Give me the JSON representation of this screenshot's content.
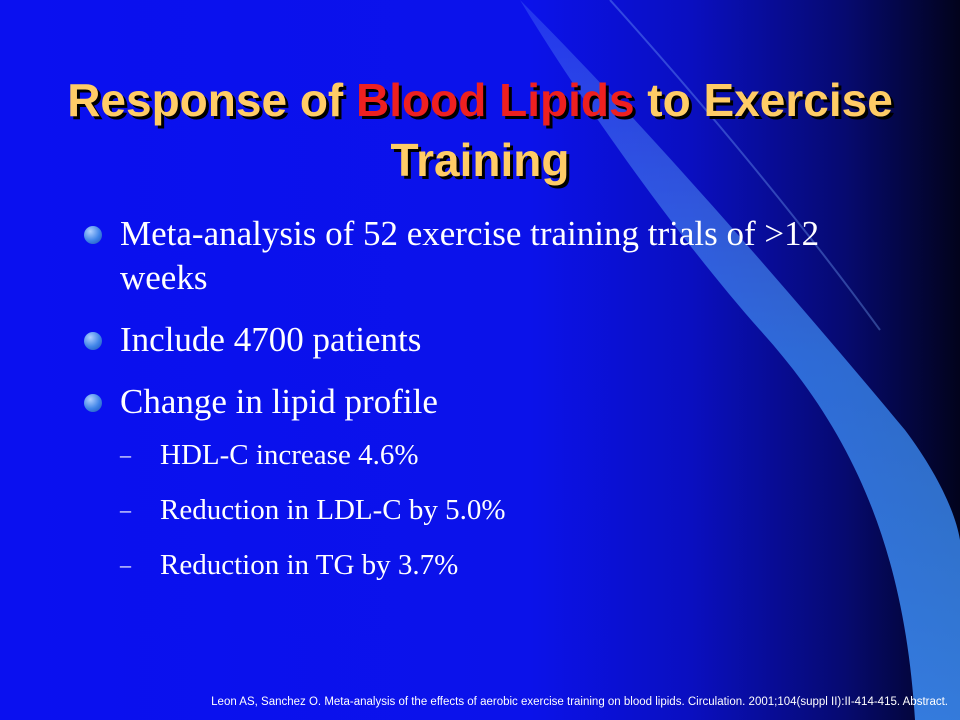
{
  "slide": {
    "title_part1": "Response of ",
    "title_highlight": "Blood Lipids",
    "title_part2": " to Exercise Training",
    "bullets": [
      {
        "text": "Meta-analysis of 52 exercise training trials of >12 weeks"
      },
      {
        "text": "Include 4700 patients"
      },
      {
        "text": "Change in lipid profile"
      }
    ],
    "sub_bullets": [
      {
        "dash": "–",
        "text": "HDL-C increase 4.6%"
      },
      {
        "dash": "–",
        "text": "Reduction in LDL-C by 5.0%"
      },
      {
        "dash": "–",
        "text": "Reduction in TG by 3.7%"
      }
    ],
    "citation": "Leon AS, Sanchez O. Meta-analysis of the effects of aerobic exercise training on blood lipids. Circulation. 2001;104(suppl II):II-414-415.  Abstract."
  },
  "colors": {
    "background": "#0b12ea",
    "title": "#ffcc66",
    "title_highlight": "#ee2020",
    "text": "#ffffff",
    "bullet_dot": "#3f84e8",
    "swoosh": "#3a88f0"
  }
}
